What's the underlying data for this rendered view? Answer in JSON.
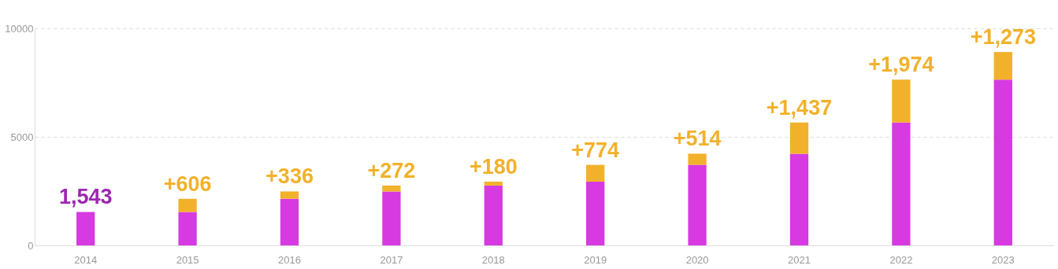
{
  "chart_data": {
    "type": "bar",
    "stacked": true,
    "categories": [
      "2014",
      "2015",
      "2016",
      "2017",
      "2018",
      "2019",
      "2020",
      "2021",
      "2022",
      "2023"
    ],
    "series": [
      {
        "color": "#d63ae0",
        "values": [
          1543,
          1543,
          2149,
          2485,
          2757,
          2937,
          3711,
          4225,
          5662,
          7636
        ],
        "value_labels": [
          "1,543",
          null,
          null,
          null,
          null,
          null,
          null,
          null,
          null,
          null
        ]
      },
      {
        "color": "#f2b12a",
        "values": [
          null,
          606,
          336,
          272,
          180,
          774,
          514,
          1437,
          1974,
          1273
        ],
        "value_labels": [
          null,
          "+606",
          "+336",
          "+272",
          "+180",
          "+774",
          "+514",
          "+1,437",
          "+1,974",
          "+1,273"
        ]
      }
    ],
    "ylim": [
      0,
      10000
    ],
    "yticks": [
      0,
      5000,
      10000
    ],
    "grid": "y"
  }
}
